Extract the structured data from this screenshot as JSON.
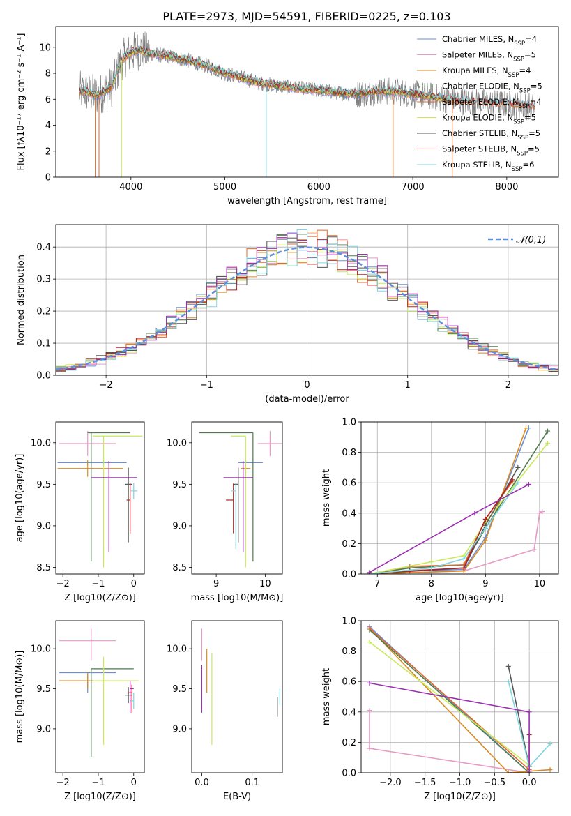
{
  "title": "PLATE=2973, MJD=54591, FIBERID=0225, z=0.103",
  "series_styles": [
    {
      "name": "Chabrier MILES",
      "nssp": "4",
      "color": "#6a8fd6"
    },
    {
      "name": "Salpeter MILES",
      "nssp": "5",
      "color": "#e69ac6"
    },
    {
      "name": "Kroupa MILES",
      "nssp": "4",
      "color": "#d98a1f"
    },
    {
      "name": "Chabrier ELODIE",
      "nssp": "5",
      "color": "#4f7a4f"
    },
    {
      "name": "Salpeter ELODIE",
      "nssp": "4",
      "color": "#e0682a"
    },
    {
      "name": "Kroupa ELODIE",
      "nssp": "5",
      "color": "#c8ea5a"
    },
    {
      "name": "Chabrier STELIB",
      "nssp": "5",
      "color": "#555555"
    },
    {
      "name": "Salpeter STELIB",
      "nssp": "5",
      "color": "#b22222"
    },
    {
      "name": "Kroupa STELIB",
      "nssp": "6",
      "color": "#7fd6e0"
    }
  ],
  "extra_colors": {
    "purple": "#9b30b0",
    "data_gray": "#7f7f7f",
    "grid": "#b0b0b0",
    "gaussian": "#5b8fd8"
  },
  "chart_data": [
    {
      "id": "spectrum",
      "type": "line",
      "xlabel": "wavelength [Angstrom, rest frame]",
      "ylabel": "Flux [fλ10⁻¹⁷ erg cm⁻² s⁻¹ A⁻¹]",
      "xlim": [
        3200,
        8550
      ],
      "ylim": [
        0,
        11.6
      ],
      "xticks": [
        4000,
        5000,
        6000,
        7000,
        8000
      ],
      "yticks": [
        0,
        2,
        4,
        6,
        8,
        10
      ],
      "grid": false,
      "legend_position": "top-right",
      "continuum": {
        "x": [
          3500,
          3650,
          3800,
          3900,
          4000,
          4100,
          4200,
          4400,
          4600,
          4800,
          5000,
          5200,
          5400,
          5600,
          5800,
          6000,
          6200,
          6400,
          6600,
          6800,
          7000,
          7200,
          7400,
          7600,
          7800,
          8000,
          8200,
          8300
        ],
        "y": [
          6.6,
          6.3,
          7.0,
          9.0,
          9.6,
          9.8,
          9.5,
          9.3,
          9.0,
          8.6,
          8.0,
          7.6,
          7.2,
          7.0,
          6.8,
          6.7,
          6.5,
          6.4,
          6.6,
          6.6,
          6.4,
          6.2,
          5.9,
          5.8,
          5.7,
          5.6,
          5.5,
          5.4
        ]
      }
    },
    {
      "id": "residuals",
      "type": "histogram",
      "xlabel": "(data-model)/error",
      "ylabel": "Normed distribution",
      "xlim": [
        -2.5,
        2.5
      ],
      "ylim": [
        0,
        0.47
      ],
      "xticks": [
        -2,
        -1,
        0,
        1,
        2
      ],
      "yticks": [
        0.0,
        0.1,
        0.2,
        0.3,
        0.4
      ],
      "grid": true,
      "legend": "𝒩(0,1)",
      "legend_position": "top-right",
      "bin_width": 0.1,
      "note": "nine stepped histograms, one per model, overlaid with a standard normal curve"
    },
    {
      "id": "age_vs_z",
      "type": "errorbar",
      "xlabel": "Z [log10(Z/Z⊙)]",
      "ylabel": "age  [log10(age/yr)]",
      "xlim": [
        -2.2,
        0.3
      ],
      "ylim": [
        8.42,
        10.25
      ],
      "xticks": [
        -2,
        -1,
        0
      ],
      "yticks": [
        8.5,
        9.0,
        9.5,
        10.0
      ],
      "points": [
        {
          "series": "Chabrier MILES",
          "x": -1.3,
          "y": 9.76,
          "xerr": [
            0.85,
            1.1
          ],
          "yerr": [
            0.0,
            0.0
          ]
        },
        {
          "series": "Salpeter MILES",
          "x": -1.3,
          "y": 9.99,
          "xerr": [
            0.8,
            0.8
          ],
          "yerr": [
            0.15,
            0.15
          ]
        },
        {
          "series": "Kroupa MILES",
          "x": -1.3,
          "y": 9.69,
          "xerr": [
            0.85,
            1.0
          ],
          "yerr": [
            0.1,
            0.1
          ]
        },
        {
          "series": "Chabrier ELODIE",
          "x": -1.2,
          "y": 10.12,
          "xerr": [
            0.1,
            1.1
          ],
          "yerr": [
            1.55,
            0.0
          ]
        },
        {
          "series": "Kroupa ELODIE",
          "x": -0.85,
          "y": 10.08,
          "xerr": [
            0.3,
            1.1
          ],
          "yerr": [
            1.58,
            0.0
          ]
        },
        {
          "series": "Chabrier STELIB",
          "x": -0.15,
          "y": 9.5,
          "xerr": [
            0.1,
            0.1
          ],
          "yerr": [
            0.7,
            0.2
          ]
        },
        {
          "series": "Salpeter STELIB",
          "x": -0.1,
          "y": 9.31,
          "xerr": [
            0.1,
            0.0
          ],
          "yerr": [
            0.4,
            0.2
          ]
        },
        {
          "series": "Kroupa STELIB",
          "x": 0.0,
          "y": 9.42,
          "xerr": [
            0.1,
            0.1
          ],
          "yerr": [
            0.1,
            0.1
          ]
        },
        {
          "series": "extra",
          "x": -0.7,
          "y": 9.58,
          "xerr": [
            0.5,
            0.8
          ],
          "yerr": [
            0.9,
            0.2
          ]
        }
      ]
    },
    {
      "id": "age_vs_mass",
      "type": "errorbar",
      "xlabel": "mass [log10(M/M⊙)]",
      "xlim": [
        8.5,
        10.35
      ],
      "ylim": [
        8.42,
        10.25
      ],
      "xticks": [
        9,
        10
      ],
      "yticks": [
        8.5,
        9.0,
        9.5,
        10.0
      ],
      "points": [
        {
          "series": "Chabrier MILES",
          "x": 9.7,
          "y": 9.76,
          "xerr": [
            0.25,
            0.25
          ],
          "yerr": [
            0.0,
            0.0
          ]
        },
        {
          "series": "Salpeter MILES",
          "x": 10.1,
          "y": 9.99,
          "xerr": [
            0.25,
            0.25
          ],
          "yerr": [
            0.15,
            0.15
          ]
        },
        {
          "series": "Kroupa MILES",
          "x": 9.6,
          "y": 9.69,
          "xerr": [
            0.1,
            0.1
          ],
          "yerr": [
            0.1,
            0.1
          ]
        },
        {
          "series": "Chabrier ELODIE",
          "x": 9.75,
          "y": 10.12,
          "xerr": [
            1.1,
            0.0
          ],
          "yerr": [
            1.55,
            0.0
          ]
        },
        {
          "series": "Kroupa ELODIE",
          "x": 9.6,
          "y": 10.08,
          "xerr": [
            0.3,
            0.0
          ],
          "yerr": [
            1.58,
            0.0
          ]
        },
        {
          "series": "Chabrier STELIB",
          "x": 9.45,
          "y": 9.5,
          "xerr": [
            0.1,
            0.0
          ],
          "yerr": [
            0.7,
            0.2
          ]
        },
        {
          "series": "Salpeter STELIB",
          "x": 9.35,
          "y": 9.31,
          "xerr": [
            0.15,
            0.0
          ],
          "yerr": [
            0.4,
            0.2
          ]
        },
        {
          "series": "Kroupa STELIB",
          "x": 9.4,
          "y": 9.42,
          "xerr": [
            0.1,
            0.0
          ],
          "yerr": [
            0.7,
            0.1
          ]
        },
        {
          "series": "extra",
          "x": 9.55,
          "y": 9.58,
          "xerr": [
            0.4,
            0.2
          ],
          "yerr": [
            0.9,
            0.2
          ]
        }
      ]
    },
    {
      "id": "cum_age",
      "type": "line",
      "xlabel": "age  [log10(age/yr)]",
      "ylabel": "mass weight",
      "xlim": [
        6.7,
        10.35
      ],
      "ylim": [
        0,
        1.0
      ],
      "xticks": [
        7,
        8,
        9,
        10
      ],
      "yticks": [
        0.0,
        0.2,
        0.4,
        0.6,
        0.8,
        1.0
      ],
      "grid": true,
      "series": [
        {
          "name": "Chabrier MILES",
          "x": [
            6.85,
            7.6,
            8.6,
            9.0,
            9.8
          ],
          "y": [
            0.0,
            0.02,
            0.03,
            0.24,
            0.96
          ]
        },
        {
          "name": "Salpeter MILES",
          "x": [
            6.85,
            8.6,
            9.9,
            10.0,
            10.05
          ],
          "y": [
            0.0,
            0.02,
            0.16,
            0.4,
            0.41
          ]
        },
        {
          "name": "Kroupa MILES",
          "x": [
            6.85,
            8.6,
            9.0,
            9.75
          ],
          "y": [
            0.0,
            0.02,
            0.22,
            0.96
          ]
        },
        {
          "name": "Chabrier ELODIE",
          "x": [
            6.85,
            7.6,
            8.6,
            9.0,
            10.15
          ],
          "y": [
            0.0,
            0.04,
            0.06,
            0.3,
            0.94
          ]
        },
        {
          "name": "Salpeter ELODIE",
          "x": [
            6.85,
            7.6,
            8.6,
            9.0,
            9.5
          ],
          "y": [
            0.0,
            0.05,
            0.06,
            0.36,
            0.61
          ]
        },
        {
          "name": "Kroupa ELODIE",
          "x": [
            6.85,
            8.0,
            8.6,
            9.0,
            10.15
          ],
          "y": [
            0.0,
            0.08,
            0.12,
            0.34,
            0.86
          ]
        },
        {
          "name": "Chabrier STELIB",
          "x": [
            6.85,
            8.6,
            9.0,
            9.6
          ],
          "y": [
            0.0,
            0.04,
            0.32,
            0.7
          ]
        },
        {
          "name": "Salpeter STELIB",
          "x": [
            6.85,
            7.6,
            8.6,
            9.0,
            9.5
          ],
          "y": [
            0.0,
            0.02,
            0.04,
            0.36,
            0.62
          ]
        },
        {
          "name": "Kroupa STELIB",
          "x": [
            6.85,
            8.0,
            8.6,
            9.0,
            9.6
          ],
          "y": [
            0.0,
            0.04,
            0.1,
            0.3,
            0.6
          ]
        },
        {
          "name": "extra",
          "x": [
            6.85,
            8.8,
            9.8
          ],
          "y": [
            0.01,
            0.4,
            0.59
          ]
        }
      ]
    },
    {
      "id": "mass_vs_z",
      "type": "errorbar",
      "xlabel": "Z [log10(Z/Z⊙)]",
      "ylabel": "mass [log10(M/M⊙)]",
      "xlim": [
        -2.2,
        0.3
      ],
      "ylim": [
        8.45,
        10.35
      ],
      "xticks": [
        -2,
        -1,
        0
      ],
      "yticks": [
        9.0,
        9.5,
        10.0
      ],
      "points": [
        {
          "series": "Chabrier MILES",
          "x": -1.3,
          "y": 9.7,
          "xerr": [
            0.8,
            0.8
          ],
          "yerr": [
            0.25,
            0.0
          ]
        },
        {
          "series": "Salpeter MILES",
          "x": -1.2,
          "y": 10.1,
          "xerr": [
            0.9,
            0.7
          ],
          "yerr": [
            0.25,
            0.15
          ]
        },
        {
          "series": "Kroupa MILES",
          "x": -1.3,
          "y": 9.6,
          "xerr": [
            0.8,
            1.0
          ],
          "yerr": [
            0.1,
            0.1
          ]
        },
        {
          "series": "Chabrier ELODIE",
          "x": -1.2,
          "y": 9.75,
          "xerr": [
            0.0,
            1.2
          ],
          "yerr": [
            1.1,
            0.0
          ]
        },
        {
          "series": "Kroupa ELODIE",
          "x": -0.85,
          "y": 9.6,
          "xerr": [
            0.3,
            1.0
          ],
          "yerr": [
            0.8,
            0.3
          ]
        },
        {
          "series": "Chabrier STELIB",
          "x": -0.15,
          "y": 9.42,
          "xerr": [
            0.1,
            0.1
          ],
          "yerr": [
            0.1,
            0.1
          ]
        },
        {
          "series": "Salpeter STELIB",
          "x": -0.05,
          "y": 9.45,
          "xerr": [
            0.1,
            0.0
          ],
          "yerr": [
            0.25,
            0.1
          ]
        },
        {
          "series": "Kroupa STELIB",
          "x": 0.0,
          "y": 9.35,
          "xerr": [
            0.1,
            0.0
          ],
          "yerr": [
            0.1,
            0.1
          ]
        },
        {
          "series": "extra",
          "x": -0.1,
          "y": 9.5,
          "xerr": [
            0.0,
            0.1
          ],
          "yerr": [
            0.3,
            0.1
          ]
        }
      ]
    },
    {
      "id": "mass_vs_ebv",
      "type": "errorbar",
      "xlabel": "E(B-V)",
      "xlim": [
        -0.02,
        0.16
      ],
      "ylim": [
        8.45,
        10.35
      ],
      "xticks": [
        0.0,
        0.1
      ],
      "yticks": [
        9.0,
        9.5,
        10.0
      ],
      "points": [
        {
          "series": "Salpeter MILES",
          "x": 0.0,
          "y": 10.1,
          "xerr": [
            0,
            0
          ],
          "yerr": [
            0.25,
            0.15
          ]
        },
        {
          "series": "Kroupa MILES",
          "x": 0.01,
          "y": 9.7,
          "xerr": [
            0,
            0
          ],
          "yerr": [
            0.25,
            0.3
          ]
        },
        {
          "series": "Kroupa ELODIE",
          "x": 0.02,
          "y": 9.7,
          "xerr": [
            0,
            0
          ],
          "yerr": [
            0.9,
            0.25
          ]
        },
        {
          "series": "Chabrier STELIB",
          "x": 0.15,
          "y": 9.3,
          "xerr": [
            0,
            0
          ],
          "yerr": [
            0.15,
            0.1
          ]
        },
        {
          "series": "Kroupa STELIB",
          "x": 0.155,
          "y": 9.4,
          "xerr": [
            0,
            0
          ],
          "yerr": [
            0.1,
            0.1
          ]
        },
        {
          "series": "extra",
          "x": 0.0,
          "y": 9.5,
          "xerr": [
            0,
            0
          ],
          "yerr": [
            0.3,
            0.3
          ]
        }
      ]
    },
    {
      "id": "cum_z",
      "type": "line",
      "xlabel": "Z [log10(Z/Z⊙)]",
      "ylabel": "mass weight",
      "xlim": [
        -2.42,
        0.42
      ],
      "ylim": [
        0,
        1.0
      ],
      "xticks": [
        -2.0,
        -1.5,
        -1.0,
        -0.5,
        0.0
      ],
      "yticks": [
        0.0,
        0.2,
        0.4,
        0.6,
        0.8,
        1.0
      ],
      "grid": true,
      "series": [
        {
          "name": "Chabrier MILES",
          "x": [
            -2.3,
            0.0
          ],
          "y": [
            0.96,
            0.0
          ]
        },
        {
          "name": "Salpeter MILES",
          "x": [
            -2.3,
            -2.3,
            0.0,
            0.0
          ],
          "y": [
            0.41,
            0.16,
            0.0,
            0.0
          ]
        },
        {
          "name": "Kroupa MILES",
          "x": [
            -2.3,
            -0.3,
            0.3
          ],
          "y": [
            0.95,
            0.0,
            0.02
          ]
        },
        {
          "name": "Chabrier ELODIE",
          "x": [
            -2.3,
            0.0
          ],
          "y": [
            0.94,
            0.0
          ]
        },
        {
          "name": "Salpeter ELODIE",
          "x": [
            -2.3,
            0.0
          ],
          "y": [
            0.95,
            0.02
          ]
        },
        {
          "name": "Kroupa ELODIE",
          "x": [
            -2.3,
            0.0
          ],
          "y": [
            0.86,
            0.05
          ]
        },
        {
          "name": "Chabrier STELIB",
          "x": [
            -0.3,
            0.0
          ],
          "y": [
            0.7,
            0.04
          ]
        },
        {
          "name": "Salpeter STELIB",
          "x": [
            0.0,
            0.0
          ],
          "y": [
            0.25,
            0.04
          ]
        },
        {
          "name": "Kroupa STELIB",
          "x": [
            -0.3,
            0.0,
            0.3
          ],
          "y": [
            0.6,
            0.04,
            0.19
          ]
        },
        {
          "name": "extra",
          "x": [
            -2.3,
            0.0,
            0.0
          ],
          "y": [
            0.59,
            0.4,
            0.01
          ]
        }
      ]
    }
  ]
}
